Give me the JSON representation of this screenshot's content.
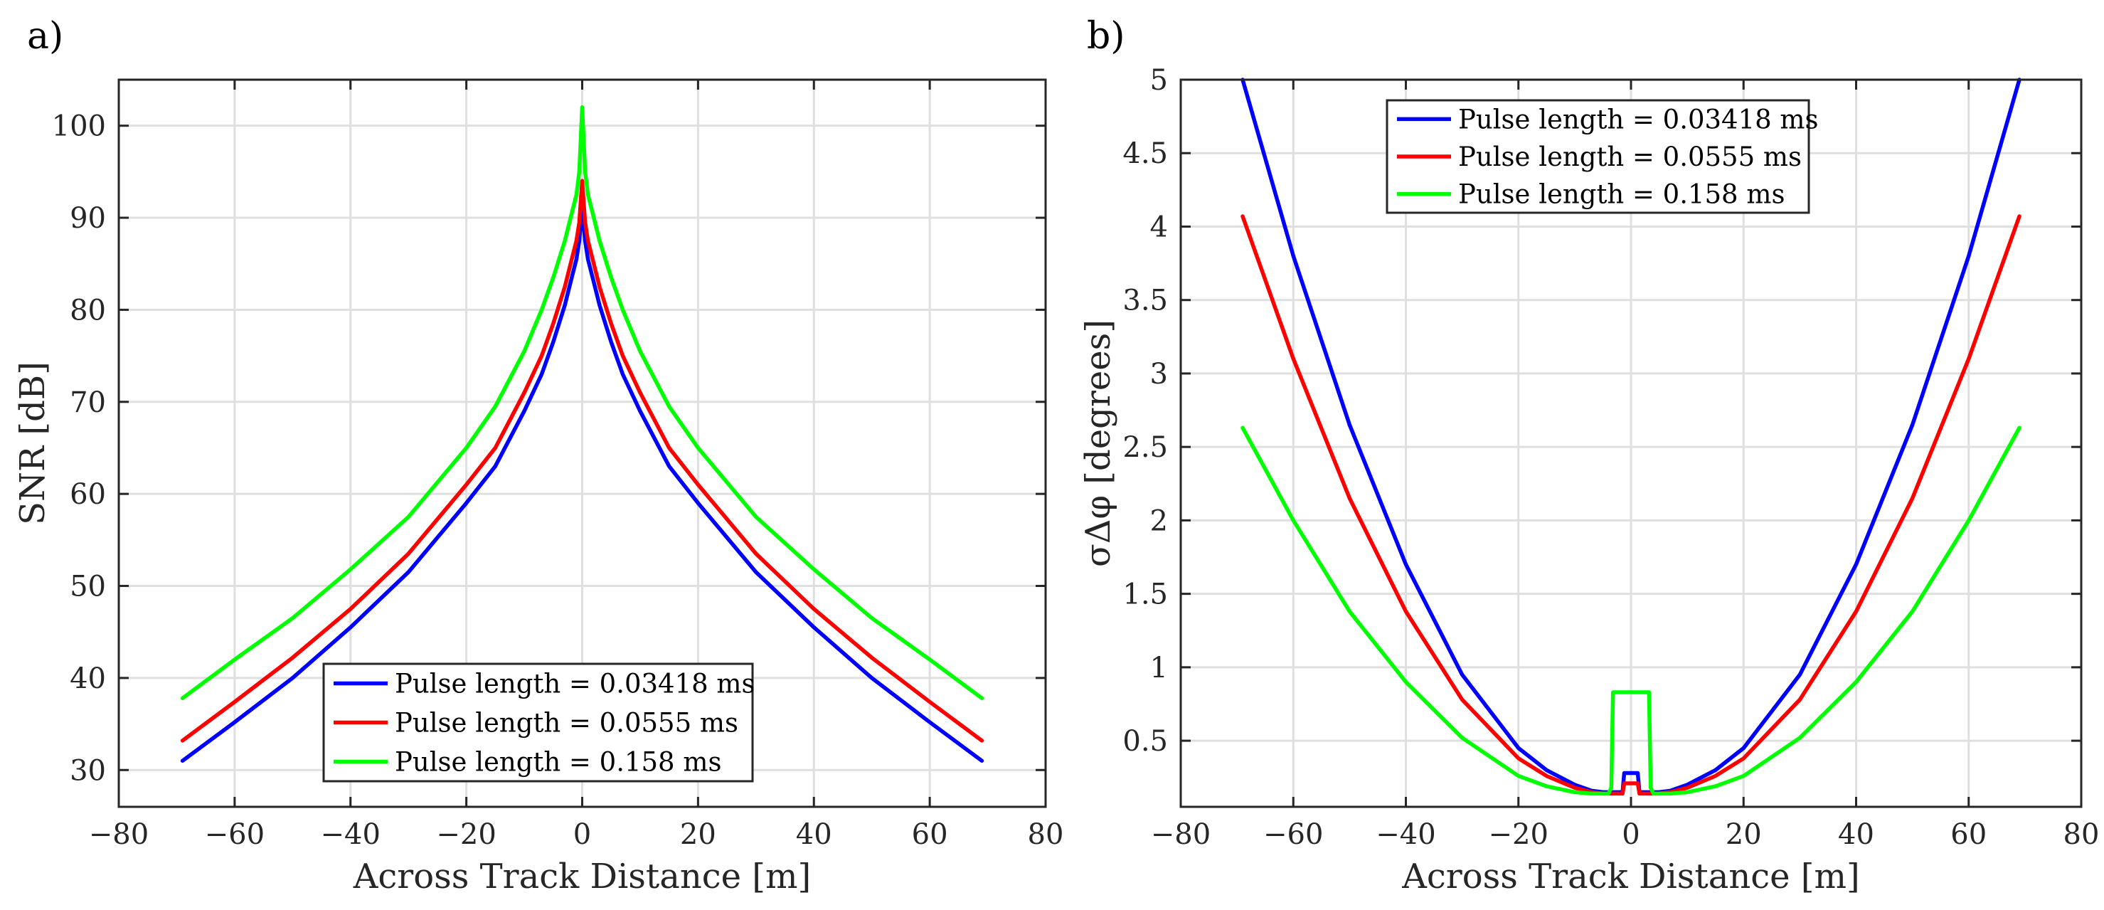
{
  "chart_data": [
    {
      "type": "line",
      "panel_label": "a)",
      "xlabel": "Across Track Distance [m]",
      "ylabel": "SNR [dB]",
      "xlim": [
        -80,
        80
      ],
      "ylim": [
        26,
        105
      ],
      "xticks": [
        -80,
        -60,
        -40,
        -20,
        0,
        20,
        40,
        60,
        80
      ],
      "xtick_labels": [
        "−80",
        "−60",
        "−40",
        "−20",
        "0",
        "20",
        "40",
        "60",
        "80"
      ],
      "yticks": [
        30,
        40,
        50,
        60,
        70,
        80,
        90,
        100
      ],
      "ytick_labels": [
        "30",
        "40",
        "50",
        "60",
        "70",
        "80",
        "90",
        "100"
      ],
      "grid": true,
      "legend_position": "bottom-center",
      "series": [
        {
          "name": "Pulse length = 0.03418 ms",
          "color": "#0000ff",
          "x": [
            -69,
            -60,
            -50,
            -40,
            -30,
            -20,
            -15,
            -10,
            -7,
            -5,
            -3,
            -2,
            -1,
            -0.5,
            0,
            0.5,
            1,
            2,
            3,
            5,
            7,
            10,
            15,
            20,
            30,
            40,
            50,
            60,
            69
          ],
          "y": [
            31,
            35.2,
            40,
            45.5,
            51.5,
            59,
            63,
            69,
            73,
            76.5,
            80.5,
            83,
            85.5,
            87.5,
            91,
            87.5,
            85.5,
            83,
            80.5,
            76.5,
            73,
            69,
            63,
            59,
            51.5,
            45.5,
            40,
            35.2,
            31
          ]
        },
        {
          "name": "Pulse length = 0.0555 ms",
          "color": "#ff0000",
          "x": [
            -69,
            -60,
            -50,
            -40,
            -30,
            -20,
            -15,
            -10,
            -7,
            -5,
            -3,
            -2,
            -1,
            -0.5,
            0,
            0.5,
            1,
            2,
            3,
            5,
            7,
            10,
            15,
            20,
            30,
            40,
            50,
            60,
            69
          ],
          "y": [
            33.2,
            37.4,
            42.2,
            47.5,
            53.5,
            61,
            65,
            71,
            75,
            78.5,
            82.5,
            85,
            87.5,
            89.5,
            94,
            89.5,
            87.5,
            85,
            82.5,
            78.5,
            75,
            71,
            65,
            61,
            53.5,
            47.5,
            42.2,
            37.4,
            33.2
          ]
        },
        {
          "name": "Pulse length = 0.158 ms",
          "color": "#00ff00",
          "x": [
            -69,
            -60,
            -50,
            -40,
            -30,
            -20,
            -15,
            -10,
            -7,
            -5,
            -3,
            -2,
            -1,
            -0.5,
            0,
            0.5,
            1,
            2,
            3,
            5,
            7,
            10,
            15,
            20,
            30,
            40,
            50,
            60,
            69
          ],
          "y": [
            37.8,
            42,
            46.5,
            51.8,
            57.5,
            65,
            69.5,
            75.5,
            80,
            83.5,
            87.5,
            90,
            92.5,
            95,
            102,
            95,
            92.5,
            90,
            87.5,
            83.5,
            80,
            75.5,
            69.5,
            65,
            57.5,
            51.8,
            46.5,
            42,
            37.8
          ]
        }
      ]
    },
    {
      "type": "line",
      "panel_label": "b)",
      "xlabel": "Across Track Distance [m]",
      "ylabel": "σΔφ [degrees]",
      "xlim": [
        -80,
        80
      ],
      "ylim": [
        0.05,
        5.0
      ],
      "xticks": [
        -80,
        -60,
        -40,
        -20,
        0,
        20,
        40,
        60,
        80
      ],
      "xtick_labels": [
        "−80",
        "−60",
        "−40",
        "−20",
        "0",
        "20",
        "40",
        "60",
        "80"
      ],
      "yticks": [
        0.5,
        1,
        1.5,
        2,
        2.5,
        3,
        3.5,
        4,
        4.5,
        5
      ],
      "ytick_labels": [
        "0.5",
        "1",
        "1.5",
        "2",
        "2.5",
        "3",
        "3.5",
        "4",
        "4.5",
        "5"
      ],
      "grid": true,
      "legend_position": "top-center",
      "series": [
        {
          "name": "Pulse length = 0.03418 ms",
          "color": "#0000ff",
          "x": [
            -69,
            -60,
            -50,
            -40,
            -30,
            -20,
            -15,
            -10,
            -7,
            -5,
            -3,
            -1.5,
            -1.2,
            1.2,
            1.5,
            3,
            5,
            7,
            10,
            15,
            20,
            30,
            40,
            50,
            60,
            69
          ],
          "y": [
            5.0,
            3.8,
            2.65,
            1.7,
            0.95,
            0.45,
            0.3,
            0.2,
            0.16,
            0.15,
            0.15,
            0.15,
            0.28,
            0.28,
            0.15,
            0.15,
            0.15,
            0.16,
            0.2,
            0.3,
            0.45,
            0.95,
            1.7,
            2.65,
            3.8,
            5.0
          ]
        },
        {
          "name": "Pulse length = 0.0555 ms",
          "color": "#ff0000",
          "x": [
            -69,
            -60,
            -50,
            -40,
            -30,
            -20,
            -15,
            -10,
            -7,
            -5,
            -3,
            -1.5,
            -1.2,
            1.2,
            1.5,
            3,
            5,
            7,
            10,
            15,
            20,
            30,
            40,
            50,
            60,
            69
          ],
          "y": [
            4.07,
            3.1,
            2.15,
            1.38,
            0.78,
            0.38,
            0.26,
            0.18,
            0.15,
            0.14,
            0.14,
            0.14,
            0.21,
            0.21,
            0.14,
            0.14,
            0.14,
            0.15,
            0.18,
            0.26,
            0.38,
            0.78,
            1.38,
            2.15,
            3.1,
            4.07
          ]
        },
        {
          "name": "Pulse length = 0.158 ms",
          "color": "#00ff00",
          "x": [
            -69,
            -60,
            -50,
            -40,
            -30,
            -20,
            -15,
            -10,
            -7,
            -5,
            -4,
            -3.5,
            -3.2,
            3.2,
            3.5,
            4,
            5,
            7,
            10,
            15,
            20,
            30,
            40,
            50,
            60,
            69
          ],
          "y": [
            2.63,
            2.0,
            1.38,
            0.9,
            0.52,
            0.26,
            0.19,
            0.15,
            0.14,
            0.14,
            0.14,
            0.18,
            0.83,
            0.83,
            0.18,
            0.14,
            0.14,
            0.14,
            0.15,
            0.19,
            0.26,
            0.52,
            0.9,
            1.38,
            2.0,
            2.63
          ]
        }
      ]
    }
  ]
}
